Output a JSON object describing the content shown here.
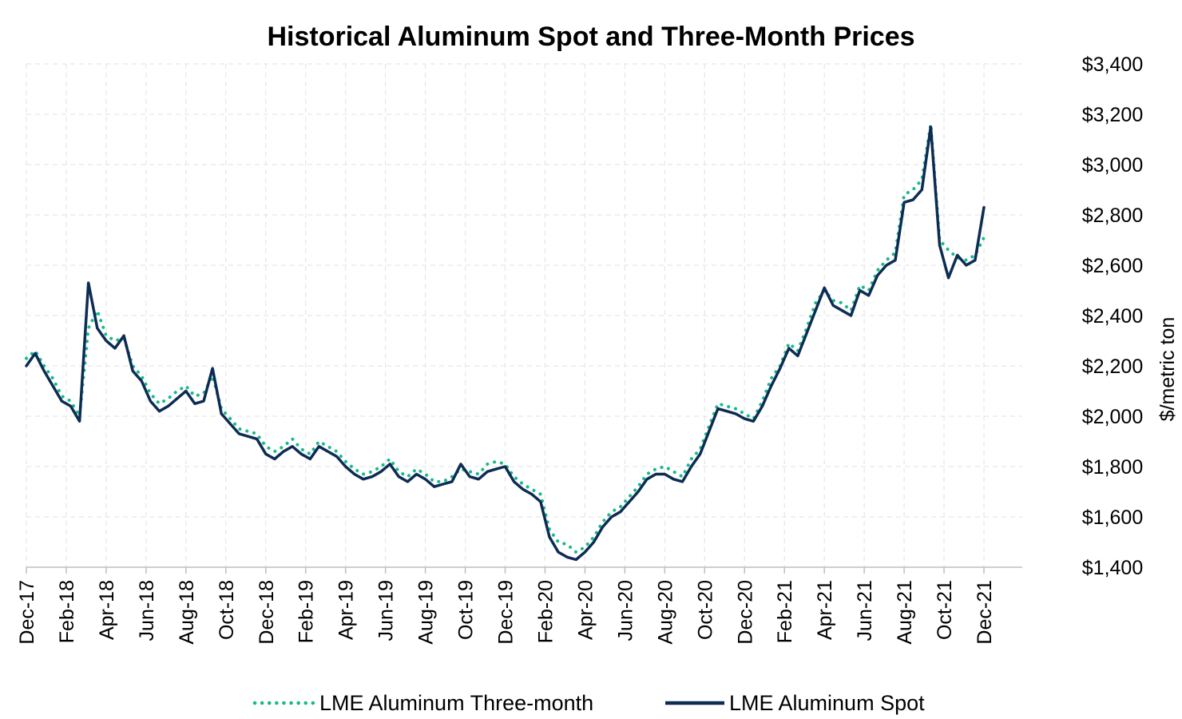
{
  "chart_data": {
    "type": "line",
    "title": "Historical Aluminum Spot and Three-Month Prices",
    "xlabel": "",
    "ylabel": "$/metric ton",
    "ylim": [
      1400,
      3400
    ],
    "y_ticks": [
      "$1,400",
      "$1,600",
      "$1,800",
      "$2,000",
      "$2,200",
      "$2,400",
      "$2,600",
      "$2,800",
      "$3,000",
      "$3,200",
      "$3,400"
    ],
    "y_tick_values": [
      1400,
      1600,
      1800,
      2000,
      2200,
      2400,
      2600,
      2800,
      3000,
      3200,
      3400
    ],
    "x_ticks": [
      "Dec-17",
      "Feb-18",
      "Apr-18",
      "Jun-18",
      "Aug-18",
      "Oct-18",
      "Dec-18",
      "Feb-19",
      "Apr-19",
      "Jun-19",
      "Aug-19",
      "Oct-19",
      "Dec-19",
      "Feb-20",
      "Apr-20",
      "Jun-20",
      "Aug-20",
      "Oct-20",
      "Dec-20",
      "Feb-21",
      "Apr-21",
      "Jun-21",
      "Aug-21",
      "Oct-21",
      "Dec-21"
    ],
    "y_axis_side": "right",
    "grid": true,
    "legend_position": "bottom",
    "series": [
      {
        "name": "LME Aluminum Three-month",
        "color": "#19b98a",
        "style": "dotted",
        "values": [
          2230,
          2260,
          2200,
          2150,
          2080,
          2060,
          2000,
          2350,
          2420,
          2320,
          2300,
          2310,
          2200,
          2160,
          2090,
          2050,
          2070,
          2100,
          2120,
          2080,
          2090,
          2160,
          2030,
          1990,
          1950,
          1940,
          1930,
          1880,
          1860,
          1880,
          1910,
          1870,
          1850,
          1900,
          1880,
          1860,
          1820,
          1790,
          1770,
          1780,
          1800,
          1830,
          1780,
          1760,
          1790,
          1770,
          1740,
          1740,
          1760,
          1790,
          1780,
          1770,
          1810,
          1820,
          1810,
          1760,
          1730,
          1710,
          1690,
          1550,
          1500,
          1490,
          1460,
          1480,
          1520,
          1580,
          1620,
          1640,
          1680,
          1720,
          1770,
          1790,
          1800,
          1780,
          1760,
          1830,
          1870,
          1960,
          2050,
          2040,
          2030,
          2010,
          1990,
          2060,
          2150,
          2200,
          2290,
          2260,
          2350,
          2450,
          2500,
          2460,
          2450,
          2420,
          2520,
          2500,
          2580,
          2620,
          2650,
          2880,
          2900,
          2940,
          3160,
          2700,
          2660,
          2630,
          2620,
          2640,
          2710
        ]
      },
      {
        "name": "LME Aluminum Spot",
        "color": "#0d2c54",
        "style": "solid",
        "values": [
          2200,
          2250,
          2180,
          2120,
          2060,
          2040,
          1980,
          2530,
          2350,
          2300,
          2270,
          2320,
          2180,
          2140,
          2060,
          2020,
          2040,
          2070,
          2100,
          2050,
          2060,
          2190,
          2010,
          1970,
          1930,
          1920,
          1910,
          1850,
          1830,
          1860,
          1880,
          1850,
          1830,
          1880,
          1860,
          1840,
          1800,
          1770,
          1750,
          1760,
          1780,
          1810,
          1760,
          1740,
          1770,
          1750,
          1720,
          1730,
          1740,
          1810,
          1760,
          1750,
          1780,
          1790,
          1800,
          1740,
          1710,
          1690,
          1660,
          1520,
          1460,
          1440,
          1430,
          1460,
          1500,
          1560,
          1600,
          1620,
          1660,
          1700,
          1750,
          1770,
          1770,
          1750,
          1740,
          1800,
          1850,
          1940,
          2030,
          2020,
          2010,
          1990,
          1980,
          2040,
          2120,
          2190,
          2270,
          2240,
          2330,
          2420,
          2510,
          2440,
          2420,
          2400,
          2500,
          2480,
          2560,
          2600,
          2620,
          2850,
          2860,
          2900,
          3150,
          2680,
          2550,
          2640,
          2600,
          2620,
          2830
        ]
      }
    ]
  }
}
